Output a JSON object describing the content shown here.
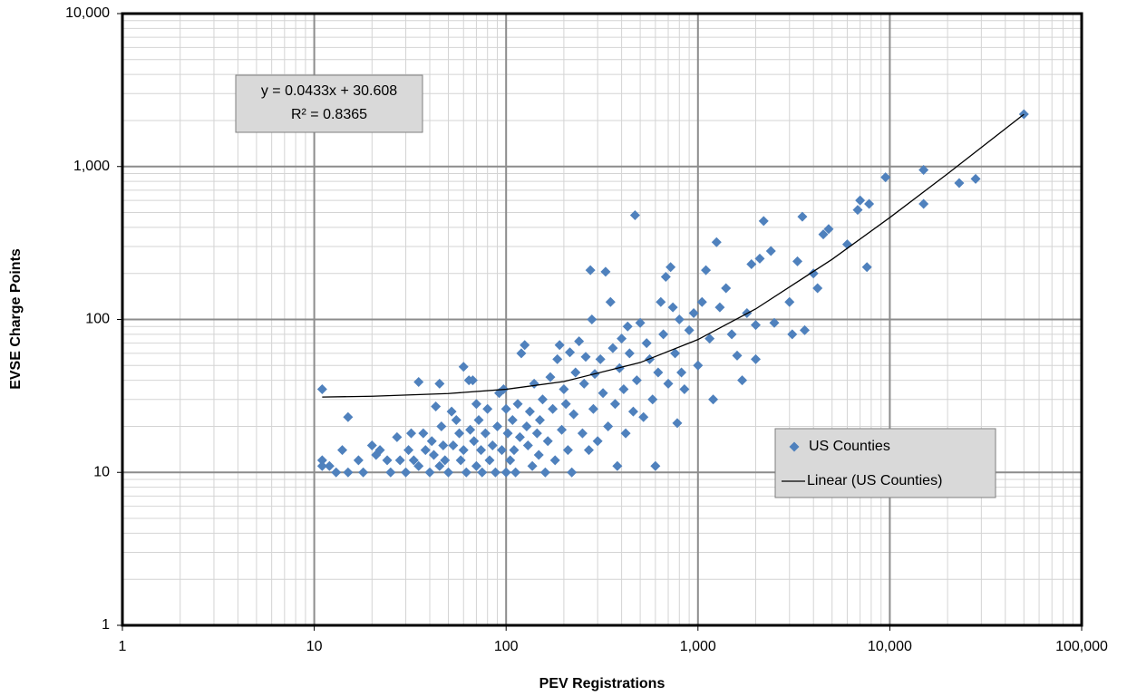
{
  "chart_data": {
    "type": "scatter",
    "x_label": "PEV Registrations",
    "y_label": "EVSE Charge Points",
    "xscale": "log",
    "yscale": "log",
    "grid": true,
    "minor_grid": true,
    "legend": "lower right",
    "xlim": [
      1,
      100000
    ],
    "ylim": [
      1,
      10000
    ],
    "xticks": [
      1,
      10,
      100,
      {
        "value": 1000,
        "label": "1,000"
      },
      {
        "value": 10000,
        "label": "10,000"
      },
      {
        "value": 100000,
        "label": "100,000"
      }
    ],
    "yticks": [
      1,
      10,
      100,
      {
        "value": 1000,
        "label": "1,000"
      },
      {
        "value": 10000,
        "label": "10,000"
      }
    ],
    "annotations": [
      "y = 0.0433x + 30.608",
      "R² = 0.8365"
    ],
    "series": [
      {
        "name": "US Counties",
        "color": "#4f81bd",
        "mode": "markers",
        "x": [
          11,
          11,
          11,
          12,
          13,
          14,
          15,
          15,
          17,
          18,
          20,
          21,
          22,
          24,
          25,
          27,
          28,
          30,
          31,
          32,
          33,
          35,
          35,
          37,
          38,
          40,
          41,
          42,
          43,
          45,
          45,
          46,
          47,
          48,
          50,
          52,
          53,
          55,
          57,
          58,
          60,
          60,
          62,
          64,
          65,
          67,
          68,
          70,
          70,
          72,
          74,
          75,
          78,
          80,
          82,
          85,
          88,
          90,
          92,
          95,
          97,
          100,
          100,
          102,
          105,
          108,
          110,
          112,
          115,
          118,
          120,
          125,
          128,
          130,
          133,
          137,
          140,
          145,
          148,
          150,
          155,
          160,
          165,
          170,
          175,
          180,
          185,
          190,
          195,
          200,
          205,
          210,
          215,
          220,
          225,
          230,
          240,
          250,
          255,
          260,
          270,
          275,
          280,
          285,
          290,
          300,
          310,
          320,
          330,
          340,
          350,
          360,
          370,
          380,
          390,
          400,
          410,
          420,
          430,
          440,
          460,
          470,
          480,
          500,
          520,
          540,
          560,
          580,
          600,
          620,
          640,
          660,
          680,
          700,
          720,
          740,
          760,
          780,
          800,
          820,
          850,
          900,
          950,
          1000,
          1050,
          1100,
          1150,
          1200,
          1250,
          1300,
          1400,
          1500,
          1600,
          1700,
          1800,
          1900,
          2000,
          2000,
          2100,
          2200,
          2400,
          2500,
          3000,
          3100,
          3300,
          3500,
          3600,
          4000,
          4200,
          4500,
          4800,
          6000,
          6800,
          7000,
          7800,
          7600,
          9500,
          15000,
          15000,
          23000,
          28000,
          50000
        ],
        "values": [
          35,
          12,
          11,
          11,
          10,
          14,
          23,
          10,
          12,
          10,
          15,
          13,
          14,
          12,
          10,
          17,
          12,
          10,
          14,
          18,
          12,
          11,
          39,
          18,
          14,
          10,
          16,
          13,
          27,
          38,
          11,
          20,
          15,
          12,
          10,
          25,
          15,
          22,
          18,
          12,
          49,
          14,
          10,
          40,
          19,
          40,
          16,
          11,
          28,
          22,
          14,
          10,
          18,
          26,
          12,
          15,
          10,
          20,
          33,
          14,
          35,
          26,
          10,
          18,
          12,
          22,
          14,
          10,
          28,
          17,
          60,
          68,
          20,
          15,
          25,
          11,
          38,
          18,
          13,
          22,
          30,
          10,
          16,
          42,
          26,
          12,
          55,
          68,
          19,
          35,
          28,
          14,
          61,
          10,
          24,
          45,
          72,
          18,
          38,
          57,
          14,
          210,
          100,
          26,
          44,
          16,
          55,
          33,
          205,
          20,
          130,
          65,
          28,
          11,
          48,
          75,
          35,
          18,
          90,
          60,
          25,
          480,
          40,
          95,
          23,
          70,
          55,
          30,
          11,
          45,
          130,
          80,
          190,
          38,
          220,
          120,
          60,
          21,
          100,
          45,
          35,
          85,
          110,
          50,
          130,
          210,
          75,
          30,
          320,
          120,
          160,
          80,
          58,
          40,
          110,
          230,
          55,
          92,
          250,
          440,
          280,
          95,
          130,
          80,
          240,
          470,
          85,
          200,
          160,
          360,
          390,
          310,
          520,
          600,
          570,
          220,
          850,
          950,
          570,
          780,
          830,
          2200
        ]
      },
      {
        "name": "Linear (US Counties)",
        "color": "#000000",
        "mode": "line",
        "x": [
          11,
          20,
          50,
          100,
          200,
          500,
          1000,
          2000,
          5000,
          10000,
          20000,
          50000
        ],
        "values": [
          31.08,
          31.47,
          32.77,
          34.94,
          39.27,
          52.26,
          73.91,
          117.2,
          247.1,
          463.9,
          896.6,
          2195.6
        ]
      }
    ]
  }
}
